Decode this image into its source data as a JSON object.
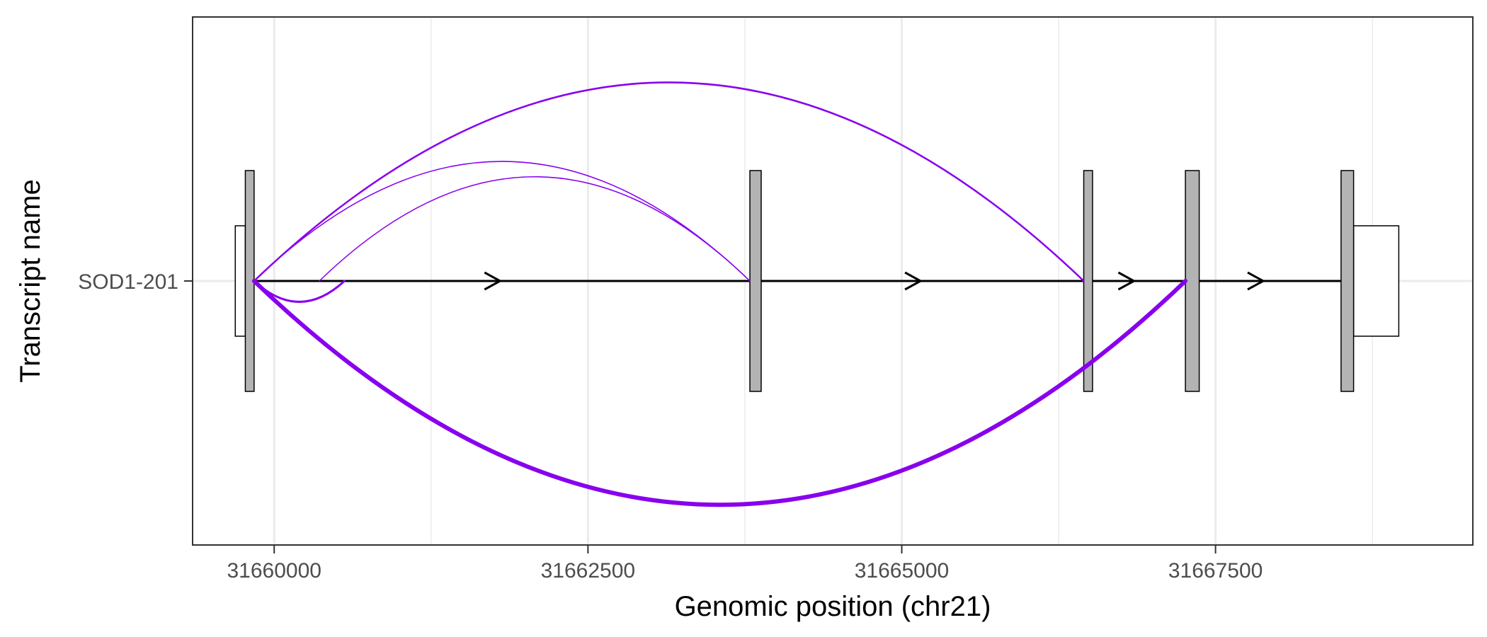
{
  "chart_data": {
    "type": "transcript-sashimi",
    "xlabel": "Genomic position (chr21)",
    "ylabel": "Transcript name",
    "xlim": [
      31659350,
      31669550
    ],
    "xticks": [
      31660000,
      31662500,
      31665000,
      31667500
    ],
    "xtick_labels": [
      "31660000",
      "31662500",
      "31665000",
      "31667500"
    ],
    "minor_xticks": [
      31661250,
      31663750,
      31666250,
      31668750
    ],
    "grid": true,
    "transcripts": [
      {
        "name": "SOD1-201",
        "strand": "+",
        "utrs": [
          {
            "start": 31659690,
            "end": 31659770
          },
          {
            "start": 31668600,
            "end": 31668960
          }
        ],
        "exons": [
          {
            "start": 31659770,
            "end": 31659840
          },
          {
            "start": 31663790,
            "end": 31663880
          },
          {
            "start": 31666450,
            "end": 31666520
          },
          {
            "start": 31667260,
            "end": 31667370
          },
          {
            "start": 31668500,
            "end": 31668600
          }
        ],
        "arrow_positions": [
          31661800,
          31665150,
          31666850,
          31667880
        ]
      }
    ],
    "junctions": [
      {
        "start": 31659840,
        "end": 31666450,
        "side": "above",
        "height": 1.81,
        "weight": 2.5
      },
      {
        "start": 31659840,
        "end": 31663790,
        "side": "above",
        "height": 1.09,
        "weight": 1.5
      },
      {
        "start": 31660360,
        "end": 31663790,
        "side": "above",
        "height": 0.95,
        "weight": 1.5
      },
      {
        "start": 31659840,
        "end": 31660560,
        "side": "below",
        "height": 0.19,
        "weight": 3
      },
      {
        "start": 31659840,
        "end": 31667260,
        "side": "below",
        "height": 2.04,
        "weight": 6
      }
    ],
    "colors": {
      "junction": "#8800ee",
      "exon_fill": "#b3b3b3",
      "utr_fill": "#ffffff",
      "intron_line": "#000000",
      "grid": "#ebebeb"
    }
  }
}
